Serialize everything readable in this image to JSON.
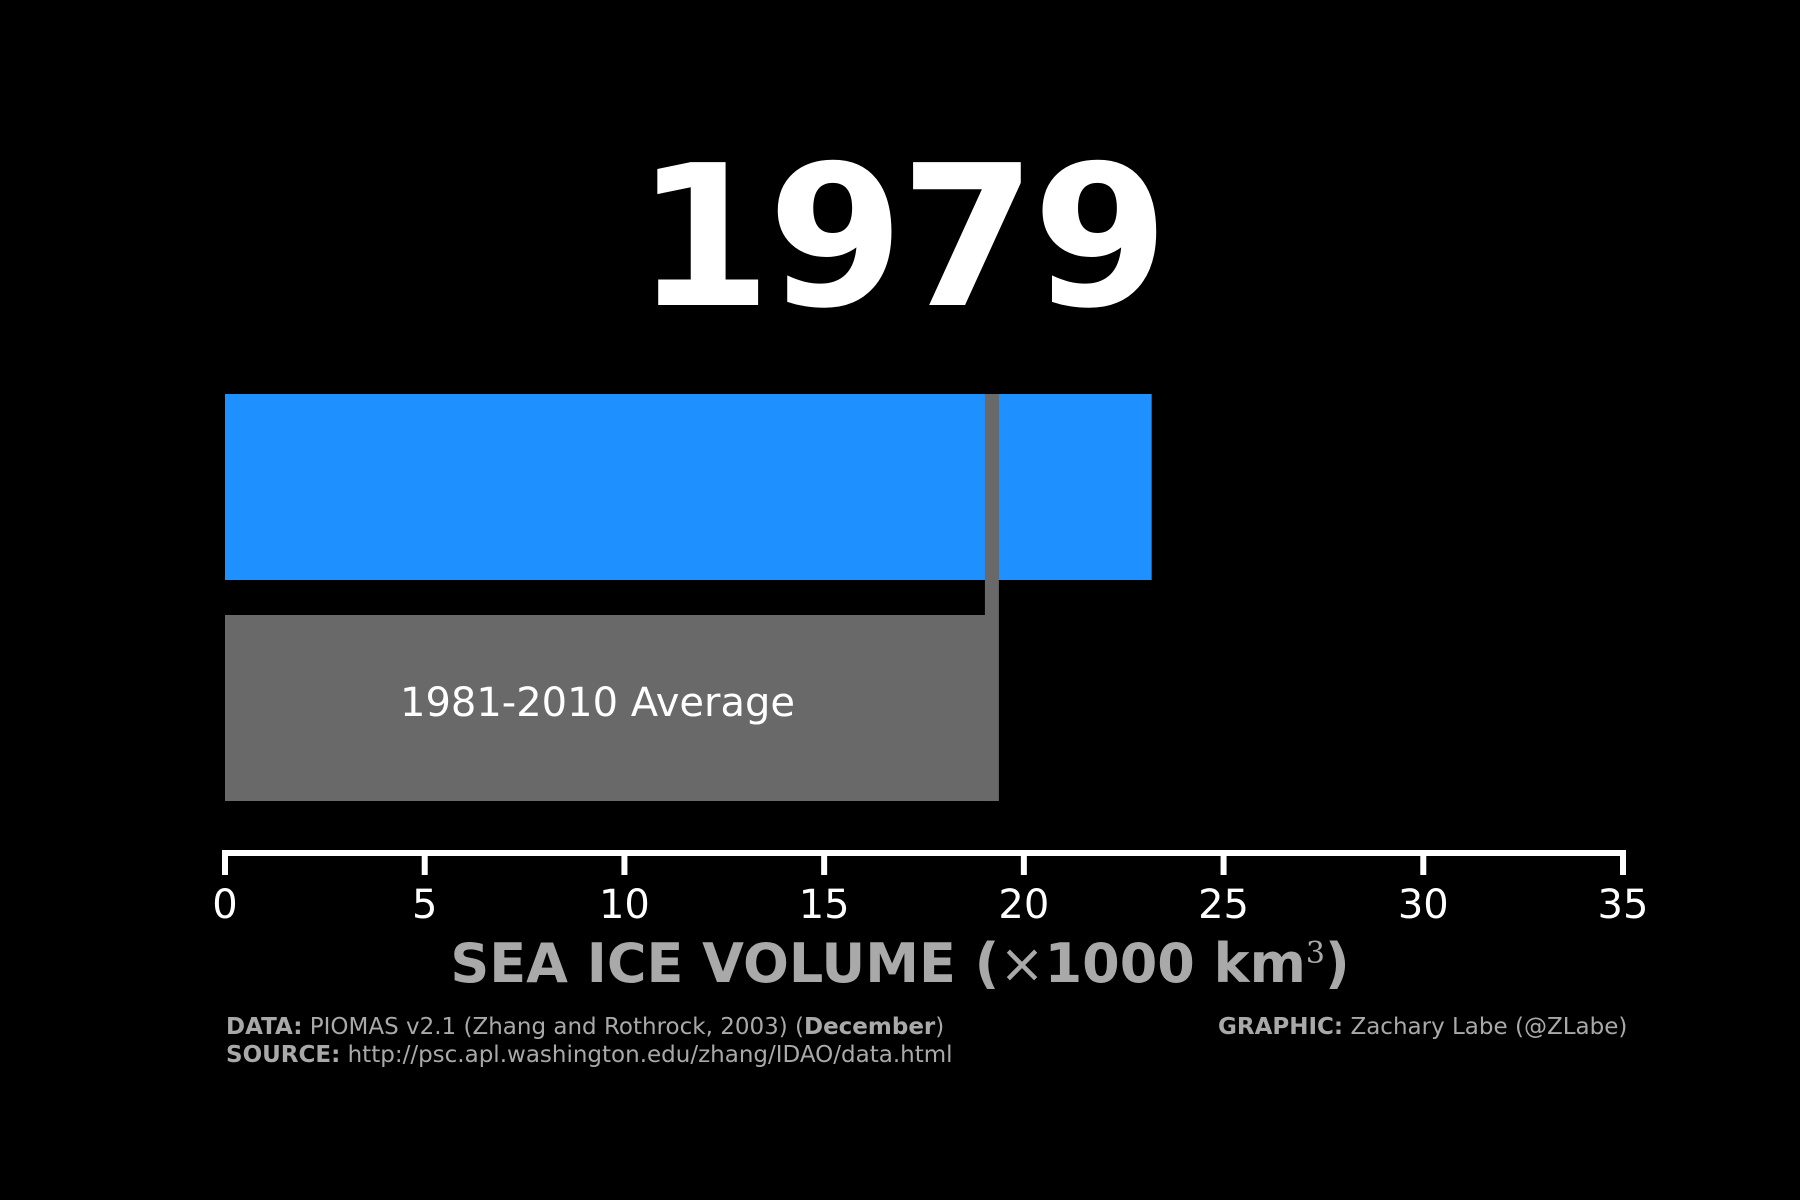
{
  "year": "1979",
  "colors": {
    "background": "#000000",
    "bar": "#1e90ff",
    "average": "#696969",
    "axis": "#ffffff",
    "text_gray": "#a9a9a9"
  },
  "chart_data": {
    "type": "bar",
    "orientation": "horizontal",
    "categories": [
      "1979",
      "1981-2010 Average"
    ],
    "values": [
      23.2,
      19.2
    ],
    "average_line": 19.2,
    "xlim": [
      0,
      35
    ],
    "xticks": [
      0,
      5,
      10,
      15,
      20,
      25,
      30,
      35
    ],
    "bar_label": "1981-2010 Average",
    "axis_title": {
      "prefix": "SEA ICE VOLUME (",
      "times": "×",
      "main": "1000 km",
      "sup": "3",
      "suffix": ")"
    },
    "grid": false
  },
  "credits": {
    "data_label": "DATA:",
    "data_text": " PIOMAS v2.1 (Zhang and Rothrock, 2003) (",
    "data_bold": "December",
    "data_end": ")",
    "source_label": "SOURCE:",
    "source_text": " http://psc.apl.washington.edu/zhang/IDAO/data.html",
    "graphic_label": "GRAPHIC:",
    "graphic_text": " Zachary Labe (@ZLabe)"
  }
}
